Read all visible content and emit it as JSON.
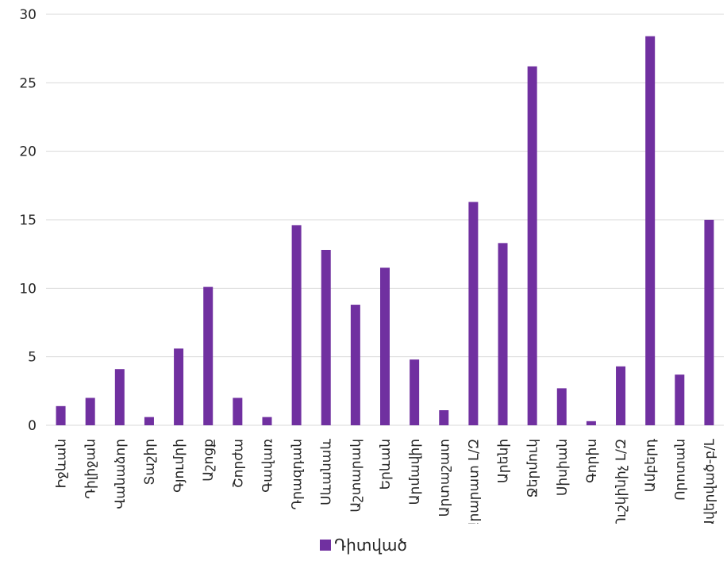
{
  "chart_data": {
    "type": "bar",
    "categories": [
      "Իջևան",
      "Դիլիջան",
      "Վանաձոր",
      "Տաշիր",
      "Գյումրի",
      "Աշոցք",
      "Շորժա",
      "Գավառ",
      "Դրազդան",
      "Սևանաև",
      "Աշտարակ",
      "Երևան",
      "Արմավիր",
      "Արտաշատ",
      "Արարատ Լ/Զ",
      "Արենի",
      "Ջերմուկ",
      "Սիսիան",
      "Գորիս",
      "Ուշկինիչ Լ/Զ",
      "Ամբերդ",
      "Որոտան",
      "Ավերված-բ/Լ"
    ],
    "series": [
      {
        "name": "Դիտված",
        "values": [
          1.4,
          2.0,
          4.1,
          0.6,
          5.6,
          10.1,
          2.0,
          0.6,
          14.6,
          12.8,
          8.8,
          11.5,
          4.8,
          1.1,
          16.3,
          13.3,
          26.2,
          2.7,
          0.3,
          4.3,
          28.4,
          3.7,
          15.0
        ]
      }
    ],
    "ylim": [
      0,
      30
    ],
    "yticks": [
      0,
      5,
      10,
      15,
      20,
      25,
      30
    ],
    "grid": true,
    "legend_position": "bottom",
    "colors": {
      "bar": "#7030a0",
      "grid": "#d9d9d9",
      "text": "#262626"
    }
  }
}
